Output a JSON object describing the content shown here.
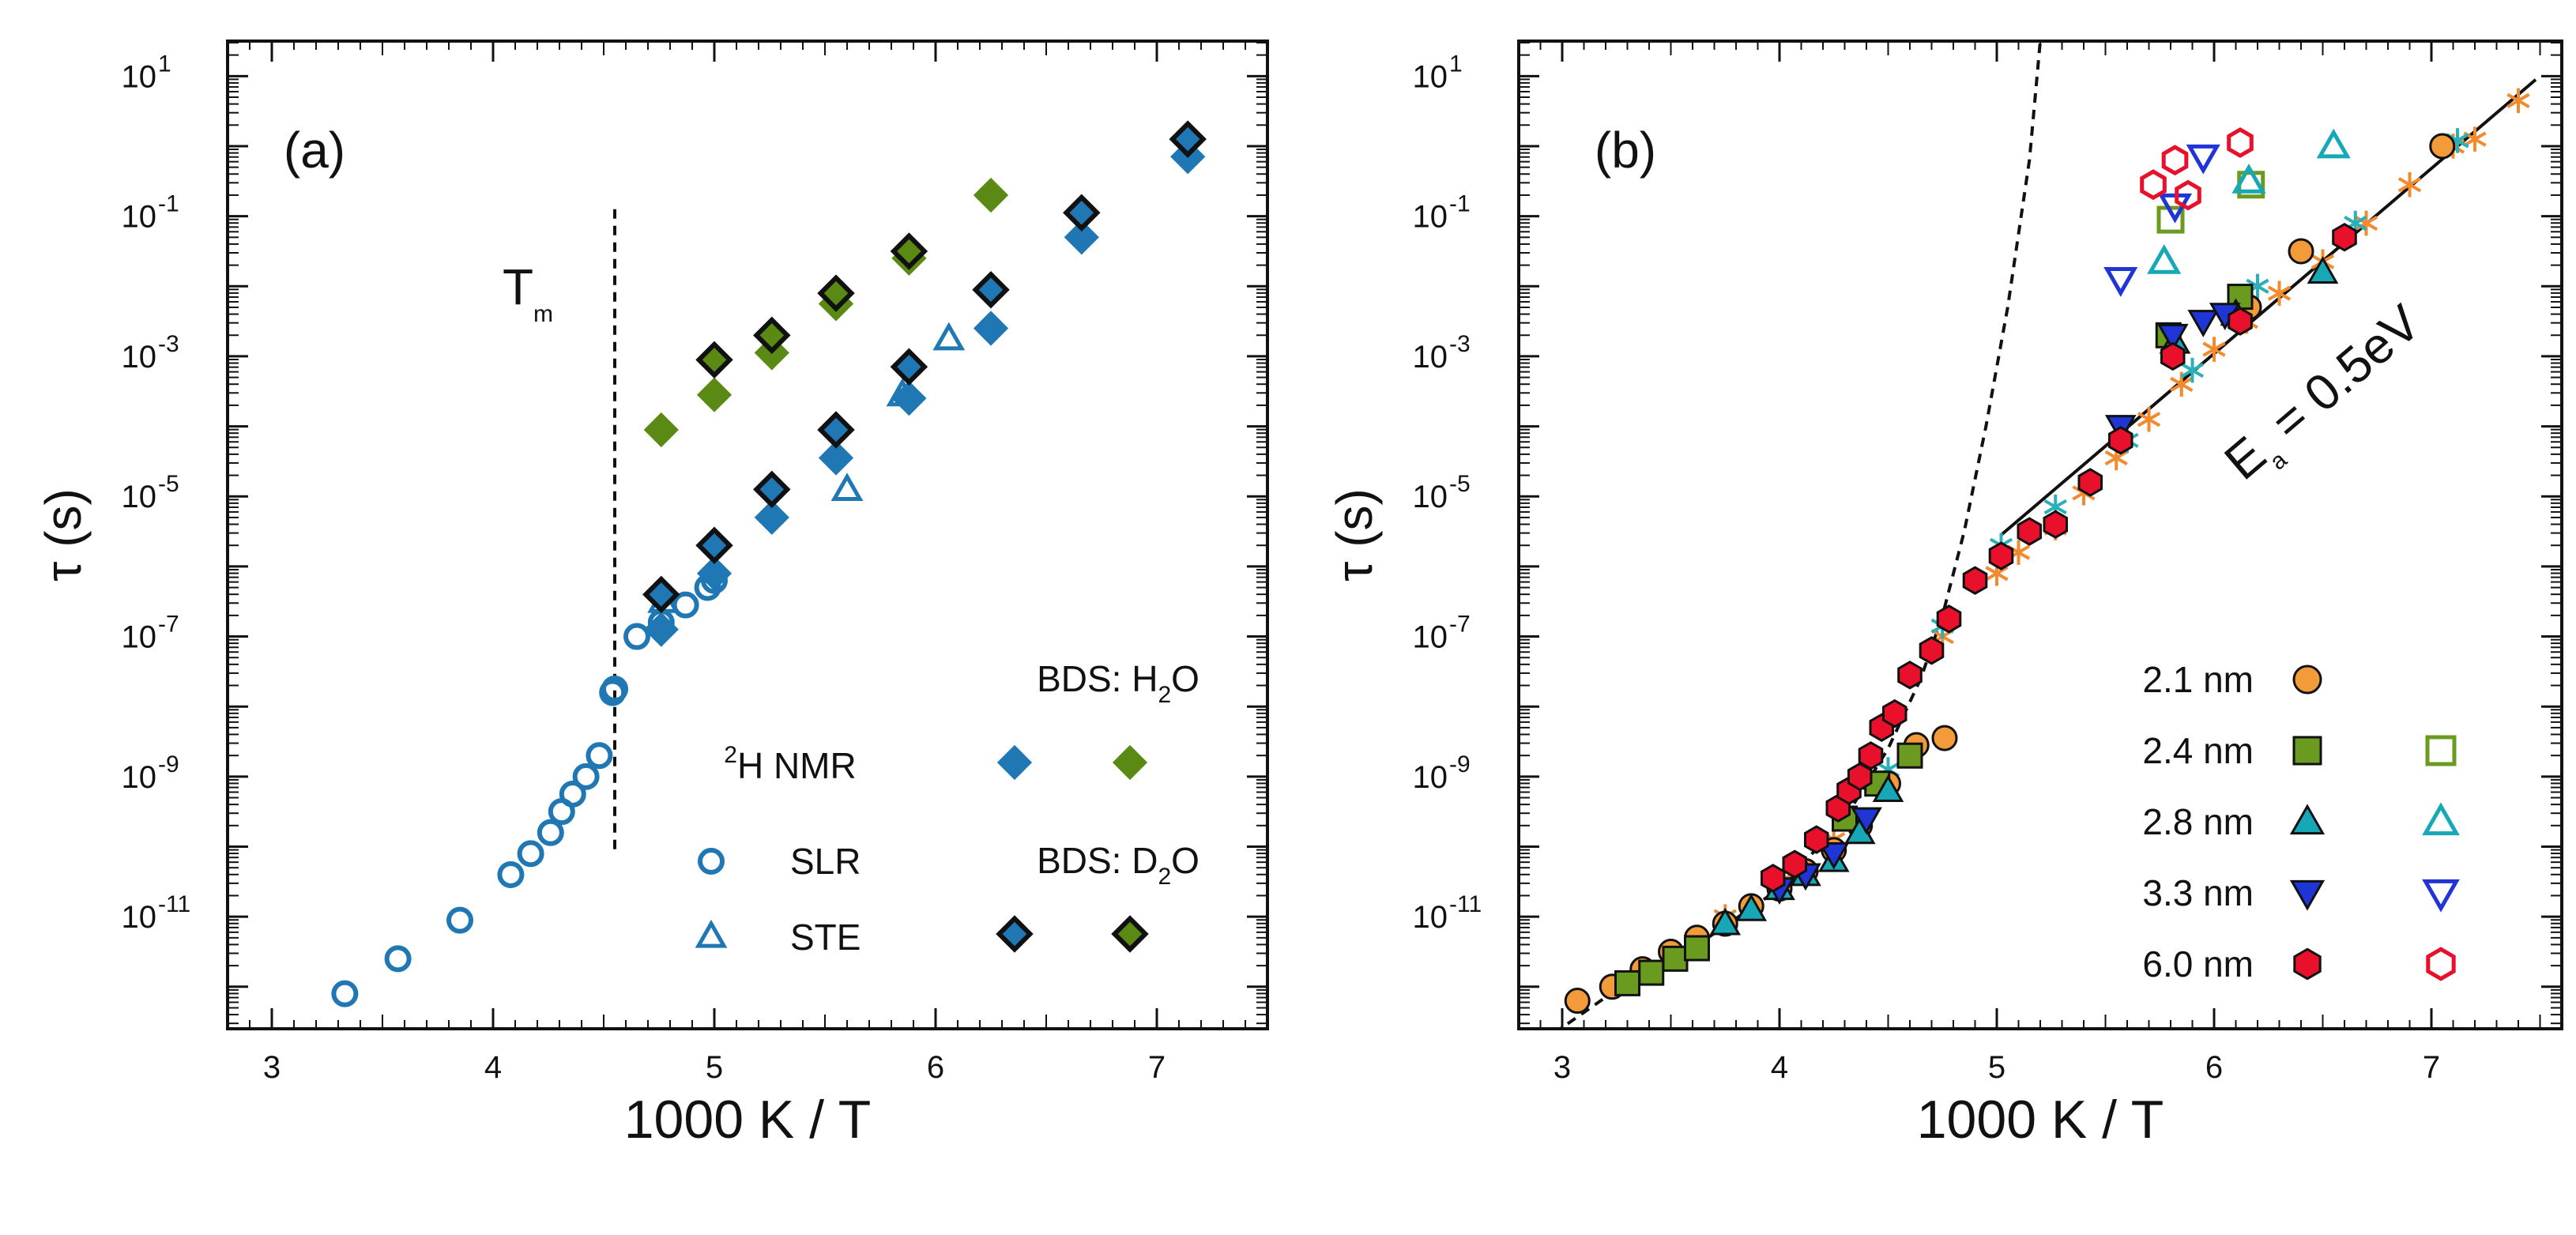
{
  "colors": {
    "blue": "#1f77b4",
    "green": "#5a8a14",
    "orange": "#f39a3a",
    "olive": "#6a9a1f",
    "teal": "#17a8b8",
    "navy": "#1f35d6",
    "red": "#e8102a",
    "star_orange": "#f28a2e",
    "star_teal": "#2ab0b8"
  },
  "chart_data": [
    {
      "type": "scatter",
      "panel_label": "(a)",
      "xlabel": "1000 K / T",
      "ylabel": "τ (s)",
      "xlim": [
        2.8,
        7.5
      ],
      "ylim_log10": [
        -12.6,
        1.5
      ],
      "x_ticks": [
        "3",
        "4",
        "5",
        "6",
        "7"
      ],
      "y_ticks": [
        {
          "base": "10",
          "exp": "1"
        },
        {
          "base": "10",
          "exp": "-1"
        },
        {
          "base": "10",
          "exp": "-3"
        },
        {
          "base": "10",
          "exp": "-5"
        },
        {
          "base": "10",
          "exp": "-7"
        },
        {
          "base": "10",
          "exp": "-9"
        },
        {
          "base": "10",
          "exp": "-11"
        }
      ],
      "annotation": {
        "main": "T",
        "sub": "m",
        "x": 4.55,
        "y_top": -0.9,
        "y_bottom": -10.1
      },
      "legend": {
        "nmr_title_sup": "2",
        "nmr_title": "H NMR",
        "slr": "SLR",
        "ste": "STE",
        "bds_h2o_prefix": "BDS: H",
        "bds_h2o_sub": "2",
        "bds_h2o_suffix": "O",
        "bds_d2o_prefix": "BDS: D",
        "bds_d2o_sub": "2",
        "bds_d2o_suffix": "O"
      },
      "series": [
        {
          "name": "SLR",
          "marker": "circle-open",
          "color": "#1f77b4",
          "points": [
            [
              3.33,
              -12.1
            ],
            [
              3.57,
              -11.6
            ],
            [
              3.85,
              -11.05
            ],
            [
              4.08,
              -10.4
            ],
            [
              4.17,
              -10.1
            ],
            [
              4.26,
              -9.8
            ],
            [
              4.31,
              -9.5
            ],
            [
              4.36,
              -9.25
            ],
            [
              4.42,
              -9.0
            ],
            [
              4.48,
              -8.7
            ],
            [
              4.54,
              -7.8
            ],
            [
              4.55,
              -7.75
            ],
            [
              4.65,
              -7.0
            ],
            [
              4.76,
              -6.8
            ],
            [
              4.87,
              -6.55
            ],
            [
              4.97,
              -6.3
            ],
            [
              5.0,
              -6.2
            ]
          ]
        },
        {
          "name": "STE",
          "marker": "triangle-open",
          "color": "#1f77b4",
          "points": [
            [
              4.77,
              -6.5
            ],
            [
              5.6,
              -4.9
            ],
            [
              5.85,
              -3.55
            ],
            [
              6.06,
              -2.75
            ]
          ]
        },
        {
          "name": "BDS H2O blue",
          "marker": "diamond-filled",
          "color": "#1f77b4",
          "points": [
            [
              4.76,
              -6.9
            ],
            [
              5.0,
              -6.1
            ],
            [
              5.26,
              -5.3
            ],
            [
              5.55,
              -4.45
            ],
            [
              5.88,
              -3.6
            ],
            [
              6.25,
              -2.6
            ],
            [
              6.66,
              -1.3
            ],
            [
              7.14,
              -0.15
            ]
          ]
        },
        {
          "name": "BDS H2O green",
          "marker": "diamond-filled",
          "color": "#5a8a14",
          "points": [
            [
              4.76,
              -4.05
            ],
            [
              5.0,
              -3.55
            ],
            [
              5.26,
              -2.95
            ],
            [
              5.55,
              -2.25
            ],
            [
              5.88,
              -1.6
            ],
            [
              6.25,
              -0.7
            ]
          ]
        },
        {
          "name": "BDS D2O blue",
          "marker": "diamond-outlined",
          "color": "#1f77b4",
          "points": [
            [
              4.76,
              -6.4
            ],
            [
              5.0,
              -5.7
            ],
            [
              5.26,
              -4.9
            ],
            [
              5.55,
              -4.05
            ],
            [
              5.88,
              -3.15
            ],
            [
              6.25,
              -2.05
            ],
            [
              6.66,
              -0.95
            ],
            [
              7.14,
              0.1
            ]
          ]
        },
        {
          "name": "BDS D2O green",
          "marker": "diamond-outlined",
          "color": "#5a8a14",
          "points": [
            [
              5.0,
              -3.05
            ],
            [
              5.26,
              -2.7
            ],
            [
              5.55,
              -2.1
            ],
            [
              5.88,
              -1.5
            ]
          ]
        }
      ]
    },
    {
      "type": "scatter",
      "panel_label": "(b)",
      "xlabel": "1000 K / T",
      "ylabel": "τ (s)",
      "xlim": [
        2.8,
        7.6
      ],
      "ylim_log10": [
        -12.6,
        1.5
      ],
      "x_ticks": [
        "3",
        "4",
        "5",
        "6",
        "7"
      ],
      "y_ticks": [
        {
          "base": "10",
          "exp": "1"
        },
        {
          "base": "10",
          "exp": "-1"
        },
        {
          "base": "10",
          "exp": "-3"
        },
        {
          "base": "10",
          "exp": "-5"
        },
        {
          "base": "10",
          "exp": "-7"
        },
        {
          "base": "10",
          "exp": "-9"
        },
        {
          "base": "10",
          "exp": "-11"
        }
      ],
      "fit_line": {
        "label_main": "E",
        "label_sub": "a",
        "label_rest": " = 0.5eV",
        "x_start": 5.02,
        "y_start": -5.55,
        "x_end": 7.48,
        "y_end": 0.95
      },
      "vft_curve": {
        "style": "dashed",
        "points": [
          [
            2.9,
            -12.8
          ],
          [
            3.2,
            -12.15
          ],
          [
            3.6,
            -11.45
          ],
          [
            4.0,
            -10.6
          ],
          [
            4.3,
            -9.6
          ],
          [
            4.5,
            -8.6
          ],
          [
            4.65,
            -7.6
          ],
          [
            4.75,
            -6.7
          ],
          [
            4.85,
            -5.5
          ],
          [
            4.95,
            -4.0
          ],
          [
            5.05,
            -2.3
          ],
          [
            5.15,
            -0.2
          ],
          [
            5.2,
            1.5
          ]
        ]
      },
      "legend": [
        {
          "label": "2.1 nm",
          "filled_marker": "circle",
          "filled_color": "#f39a3a",
          "open_marker": null,
          "open_color": null
        },
        {
          "label": "2.4 nm",
          "filled_marker": "square",
          "filled_color": "#6a9a1f",
          "open_marker": "square",
          "open_color": "#6a9a1f"
        },
        {
          "label": "2.8 nm",
          "filled_marker": "triangle",
          "filled_color": "#17a8b8",
          "open_marker": "triangle",
          "open_color": "#17a8b8"
        },
        {
          "label": "3.3 nm",
          "filled_marker": "triangle-down",
          "filled_color": "#1f35d6",
          "open_marker": "triangle-down",
          "open_color": "#1f35d6"
        },
        {
          "label": "6.0 nm",
          "filled_marker": "hexagon",
          "filled_color": "#e8102a",
          "open_marker": "hexagon",
          "open_color": "#e8102a"
        }
      ],
      "series": [
        {
          "name": "2.1 nm",
          "marker": "circle",
          "filled": true,
          "color": "#f39a3a",
          "points": [
            [
              3.07,
              -12.2
            ],
            [
              3.23,
              -12.0
            ],
            [
              3.37,
              -11.75
            ],
            [
              3.5,
              -11.5
            ],
            [
              3.62,
              -11.3
            ],
            [
              3.75,
              -11.1
            ],
            [
              3.87,
              -10.85
            ],
            [
              4.0,
              -10.6
            ],
            [
              4.12,
              -10.35
            ],
            [
              4.25,
              -10.05
            ],
            [
              4.37,
              -9.7
            ],
            [
              4.5,
              -9.1
            ],
            [
              4.63,
              -8.55
            ],
            [
              4.76,
              -8.45
            ],
            [
              6.16,
              -2.3
            ],
            [
              6.4,
              -1.5
            ],
            [
              7.05,
              0.0
            ]
          ]
        },
        {
          "name": "2.4 nm filled",
          "marker": "square",
          "filled": true,
          "color": "#6a9a1f",
          "points": [
            [
              3.3,
              -11.95
            ],
            [
              3.41,
              -11.8
            ],
            [
              3.52,
              -11.6
            ],
            [
              3.62,
              -11.45
            ],
            [
              4.3,
              -9.6
            ],
            [
              4.45,
              -9.1
            ],
            [
              4.6,
              -8.7
            ],
            [
              5.79,
              -2.7
            ],
            [
              6.12,
              -2.15
            ]
          ]
        },
        {
          "name": "2.4 nm open",
          "marker": "square",
          "filled": false,
          "color": "#6a9a1f",
          "points": [
            [
              5.8,
              -1.05
            ],
            [
              6.17,
              -0.55
            ]
          ]
        },
        {
          "name": "2.8 nm filled",
          "marker": "triangle",
          "filled": true,
          "color": "#17a8b8",
          "points": [
            [
              3.75,
              -11.1
            ],
            [
              3.87,
              -10.9
            ],
            [
              4.0,
              -10.6
            ],
            [
              4.12,
              -10.4
            ],
            [
              4.25,
              -10.2
            ],
            [
              4.37,
              -9.8
            ],
            [
              4.5,
              -9.2
            ],
            [
              5.82,
              -2.8
            ],
            [
              6.1,
              -2.4
            ],
            [
              6.5,
              -1.8
            ]
          ]
        },
        {
          "name": "2.8 nm open",
          "marker": "triangle",
          "filled": false,
          "color": "#17a8b8",
          "points": [
            [
              5.77,
              -1.65
            ],
            [
              6.16,
              -0.5
            ],
            [
              6.55,
              0.0
            ]
          ]
        },
        {
          "name": "3.3 nm filled",
          "marker": "triangle-down",
          "filled": true,
          "color": "#1f35d6",
          "points": [
            [
              4.0,
              -10.6
            ],
            [
              4.12,
              -10.4
            ],
            [
              4.25,
              -10.1
            ],
            [
              4.4,
              -9.6
            ],
            [
              5.57,
              -4.0
            ],
            [
              5.81,
              -2.7
            ],
            [
              5.95,
              -2.5
            ],
            [
              6.05,
              -2.4
            ]
          ]
        },
        {
          "name": "3.3 nm open",
          "marker": "triangle-down",
          "filled": false,
          "color": "#1f35d6",
          "points": [
            [
              5.57,
              -1.9
            ],
            [
              5.82,
              -0.85
            ],
            [
              5.95,
              -0.15
            ]
          ]
        },
        {
          "name": "6.0 nm filled",
          "marker": "hexagon",
          "filled": true,
          "color": "#e8102a",
          "points": [
            [
              3.97,
              -10.45
            ],
            [
              4.07,
              -10.25
            ],
            [
              4.17,
              -9.9
            ],
            [
              4.27,
              -9.45
            ],
            [
              4.32,
              -9.2
            ],
            [
              4.37,
              -9.0
            ],
            [
              4.42,
              -8.7
            ],
            [
              4.47,
              -8.3
            ],
            [
              4.53,
              -8.1
            ],
            [
              4.6,
              -7.55
            ],
            [
              4.7,
              -7.2
            ],
            [
              4.78,
              -6.75
            ],
            [
              4.9,
              -6.2
            ],
            [
              5.02,
              -5.85
            ],
            [
              5.15,
              -5.5
            ],
            [
              5.27,
              -5.4
            ],
            [
              5.43,
              -4.8
            ],
            [
              5.57,
              -4.2
            ],
            [
              5.81,
              -3.0
            ],
            [
              6.12,
              -2.5
            ],
            [
              6.6,
              -1.3
            ]
          ]
        },
        {
          "name": "6.0 nm open",
          "marker": "hexagon",
          "filled": false,
          "color": "#e8102a",
          "points": [
            [
              5.72,
              -0.55
            ],
            [
              5.82,
              -0.2
            ],
            [
              5.88,
              -0.7
            ],
            [
              6.12,
              0.05
            ]
          ]
        },
        {
          "name": "stars orange",
          "marker": "star",
          "filled": true,
          "color": "#f28a2e",
          "points": [
            [
              3.75,
              -11.0
            ],
            [
              4.0,
              -10.5
            ],
            [
              4.25,
              -9.9
            ],
            [
              4.5,
              -9.1
            ],
            [
              4.75,
              -7.0
            ],
            [
              5.0,
              -6.1
            ],
            [
              5.1,
              -5.8
            ],
            [
              5.27,
              -5.45
            ],
            [
              5.4,
              -4.95
            ],
            [
              5.55,
              -4.45
            ],
            [
              5.7,
              -3.9
            ],
            [
              5.85,
              -3.4
            ],
            [
              6.0,
              -2.9
            ],
            [
              6.15,
              -2.5
            ],
            [
              6.3,
              -2.1
            ],
            [
              6.5,
              -1.65
            ],
            [
              6.7,
              -1.1
            ],
            [
              6.9,
              -0.55
            ],
            [
              7.1,
              0.0
            ],
            [
              7.2,
              0.1
            ],
            [
              7.4,
              0.65
            ]
          ]
        },
        {
          "name": "stars teal",
          "marker": "star",
          "filled": true,
          "color": "#2ab0b8",
          "points": [
            [
              4.1,
              -10.3
            ],
            [
              4.5,
              -8.9
            ],
            [
              4.75,
              -6.85
            ],
            [
              5.02,
              -5.7
            ],
            [
              5.27,
              -5.15
            ],
            [
              5.6,
              -4.2
            ],
            [
              5.9,
              -3.2
            ],
            [
              6.2,
              -2.0
            ],
            [
              6.65,
              -1.1
            ],
            [
              7.12,
              0.08
            ]
          ]
        }
      ]
    }
  ]
}
